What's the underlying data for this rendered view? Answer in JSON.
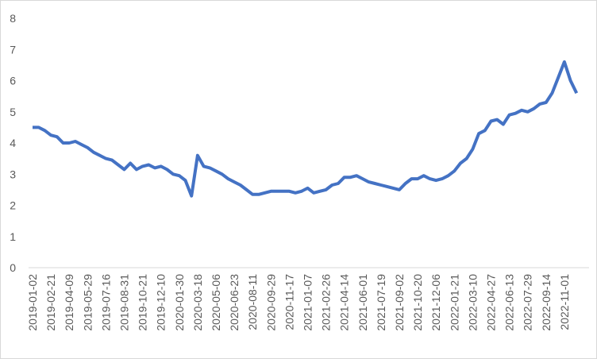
{
  "chart_data": {
    "type": "line",
    "categories": [
      "2019-01-02",
      null,
      null,
      "2019-02-21",
      null,
      null,
      "2019-04-09",
      null,
      null,
      "2019-05-29",
      null,
      null,
      "2019-07-16",
      null,
      null,
      "2019-08-31",
      null,
      null,
      "2019-10-21",
      null,
      null,
      "2019-12-10",
      null,
      null,
      "2020-01-30",
      null,
      null,
      "2020-03-18",
      null,
      null,
      "2020-05-06",
      null,
      null,
      "2020-06-23",
      null,
      null,
      "2020-08-11",
      null,
      null,
      "2020-09-29",
      null,
      null,
      "2020-11-17",
      null,
      null,
      "2021-01-07",
      null,
      null,
      "2021-02-26",
      null,
      null,
      "2021-04-14",
      null,
      null,
      "2021-06-01",
      null,
      null,
      "2021-07-19",
      null,
      null,
      "2021-09-02",
      null,
      null,
      "2021-10-20",
      null,
      null,
      "2021-12-06",
      null,
      null,
      "2022-01-21",
      null,
      null,
      "2022-03-10",
      null,
      null,
      "2022-04-27",
      null,
      null,
      "2022-06-13",
      null,
      null,
      "2022-07-29",
      null,
      null,
      "2022-09-14",
      null,
      null,
      "2022-11-01",
      null,
      null
    ],
    "series": [
      {
        "color": "#4472c4",
        "values": [
          4.5,
          4.5,
          4.4,
          4.25,
          4.2,
          4.0,
          4.0,
          4.05,
          3.95,
          3.85,
          3.7,
          3.6,
          3.5,
          3.45,
          3.3,
          3.15,
          3.35,
          3.15,
          3.25,
          3.3,
          3.2,
          3.25,
          3.15,
          3.0,
          2.95,
          2.8,
          2.3,
          3.6,
          3.25,
          3.2,
          3.1,
          3.0,
          2.85,
          2.75,
          2.65,
          2.5,
          2.35,
          2.35,
          2.4,
          2.45,
          2.45,
          2.45,
          2.45,
          2.4,
          2.45,
          2.55,
          2.4,
          2.45,
          2.5,
          2.65,
          2.7,
          2.9,
          2.9,
          2.95,
          2.85,
          2.75,
          2.7,
          2.65,
          2.6,
          2.55,
          2.5,
          2.7,
          2.85,
          2.85,
          2.95,
          2.85,
          2.8,
          2.85,
          2.95,
          3.1,
          3.35,
          3.5,
          3.8,
          4.3,
          4.4,
          4.7,
          4.75,
          4.6,
          4.9,
          4.95,
          5.05,
          5.0,
          5.1,
          5.25,
          5.3,
          5.6,
          6.1,
          6.6,
          6.0,
          5.6
        ]
      }
    ],
    "ylim": [
      0,
      8
    ],
    "yticks": [
      0,
      1,
      2,
      3,
      4,
      5,
      6,
      7,
      8
    ],
    "grid": false
  }
}
